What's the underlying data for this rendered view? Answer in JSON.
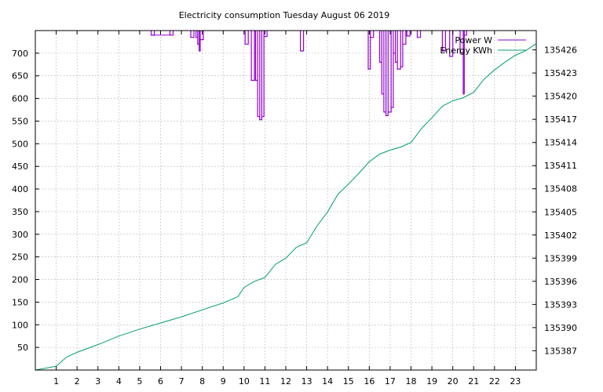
{
  "chart_data": {
    "type": "line",
    "title": "Electricity consumption Tuesday August 06 2019",
    "xlabel": "",
    "ylabel": "",
    "y2label": "",
    "grid": true,
    "legend_position": "top-right",
    "xlim": [
      0,
      24
    ],
    "ylim": [
      0,
      750
    ],
    "y2lim": [
      135384.5,
      135428.5
    ],
    "x_ticks": [
      1,
      2,
      3,
      4,
      5,
      6,
      7,
      8,
      9,
      10,
      11,
      12,
      13,
      14,
      15,
      16,
      17,
      18,
      19,
      20,
      21,
      22,
      23
    ],
    "y_ticks": [
      50,
      100,
      150,
      200,
      250,
      300,
      350,
      400,
      450,
      500,
      550,
      600,
      650,
      700
    ],
    "y2_ticks": [
      135387,
      135390,
      135393,
      135396,
      135399,
      135402,
      135405,
      135408,
      135411,
      135414,
      135417,
      135420,
      135423,
      135426
    ],
    "series": [
      {
        "name": "Power W",
        "axis": "y",
        "color": "#9400d3",
        "style": "steps",
        "baseline": 750,
        "points": [
          [
            5.55,
            740
          ],
          [
            6.45,
            740
          ],
          [
            7.45,
            735
          ],
          [
            7.7,
            735
          ],
          [
            7.78,
            720
          ],
          [
            7.85,
            705
          ],
          [
            7.9,
            730
          ],
          [
            10.05,
            720
          ],
          [
            10.35,
            640
          ],
          [
            10.55,
            640
          ],
          [
            10.65,
            560
          ],
          [
            10.75,
            553
          ],
          [
            10.85,
            560
          ],
          [
            10.95,
            737
          ],
          [
            12.7,
            705
          ],
          [
            15.95,
            665
          ],
          [
            16.05,
            735
          ],
          [
            16.5,
            680
          ],
          [
            16.6,
            610
          ],
          [
            16.7,
            570
          ],
          [
            16.8,
            562
          ],
          [
            16.9,
            570
          ],
          [
            17.05,
            580
          ],
          [
            17.15,
            700
          ],
          [
            17.25,
            680
          ],
          [
            17.35,
            665
          ],
          [
            17.5,
            670
          ],
          [
            17.6,
            720
          ],
          [
            17.8,
            738
          ],
          [
            18.3,
            735
          ],
          [
            19.5,
            705
          ],
          [
            19.85,
            693
          ],
          [
            20.35,
            700
          ],
          [
            20.5,
            610
          ],
          [
            20.55,
            740
          ]
        ]
      },
      {
        "name": "Energy KWh",
        "axis": "y2",
        "color": "#009e73",
        "style": "line",
        "points": [
          [
            0,
            135384.5
          ],
          [
            1,
            135385.0
          ],
          [
            1.5,
            135386.2
          ],
          [
            2,
            135386.8
          ],
          [
            3,
            135387.8
          ],
          [
            4,
            135388.9
          ],
          [
            5,
            135389.8
          ],
          [
            6,
            135390.6
          ],
          [
            7,
            135391.4
          ],
          [
            8,
            135392.3
          ],
          [
            9,
            135393.2
          ],
          [
            9.7,
            135394.0
          ],
          [
            10,
            135395.2
          ],
          [
            10.5,
            135396.0
          ],
          [
            11,
            135396.5
          ],
          [
            11.5,
            135398.2
          ],
          [
            12,
            135399.0
          ],
          [
            12.5,
            135400.4
          ],
          [
            13,
            135401.0
          ],
          [
            13.5,
            135403.2
          ],
          [
            14,
            135405.0
          ],
          [
            14.5,
            135407.3
          ],
          [
            15,
            135408.6
          ],
          [
            15.5,
            135410.0
          ],
          [
            16,
            135411.5
          ],
          [
            16.5,
            135412.5
          ],
          [
            17,
            135413.0
          ],
          [
            17.5,
            135413.4
          ],
          [
            18,
            135414.0
          ],
          [
            18.5,
            135415.8
          ],
          [
            19,
            135417.2
          ],
          [
            19.5,
            135418.7
          ],
          [
            20,
            135419.4
          ],
          [
            20.5,
            135419.8
          ],
          [
            21,
            135420.5
          ],
          [
            21.5,
            135422.2
          ],
          [
            22,
            135423.4
          ],
          [
            22.5,
            135424.4
          ],
          [
            23,
            135425.3
          ],
          [
            23.5,
            135425.9
          ],
          [
            24,
            135426.8
          ]
        ]
      }
    ]
  }
}
